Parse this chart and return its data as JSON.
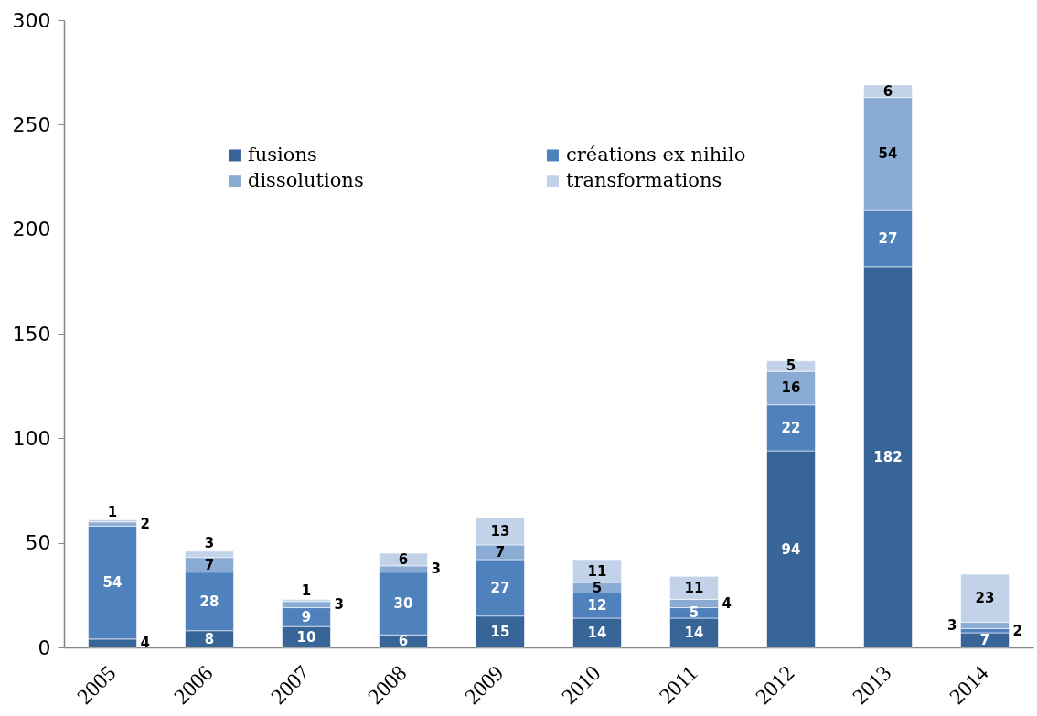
{
  "chart_data": {
    "type": "bar",
    "stacked": true,
    "categories": [
      "2005",
      "2006",
      "2007",
      "2008",
      "2009",
      "2010",
      "2011",
      "2012",
      "2013",
      "2014"
    ],
    "series": [
      {
        "name": "fusions",
        "color": "#386597",
        "values": [
          4,
          8,
          10,
          6,
          15,
          14,
          14,
          94,
          182,
          7
        ]
      },
      {
        "name": "créations ex nihilo",
        "color": "#4f81bd",
        "values": [
          54,
          28,
          9,
          30,
          27,
          12,
          5,
          22,
          27,
          2
        ]
      },
      {
        "name": "dissolutions",
        "color": "#8aabd4",
        "values": [
          2,
          7,
          3,
          3,
          7,
          5,
          4,
          16,
          54,
          3
        ]
      },
      {
        "name": "transformations",
        "color": "#c2d3e9",
        "values": [
          1,
          3,
          1,
          6,
          13,
          11,
          11,
          5,
          6,
          23
        ]
      }
    ],
    "ylim": [
      0,
      300
    ],
    "yticks": [
      0,
      50,
      100,
      150,
      200,
      250,
      300
    ],
    "data_labels": true,
    "legend": "top"
  }
}
